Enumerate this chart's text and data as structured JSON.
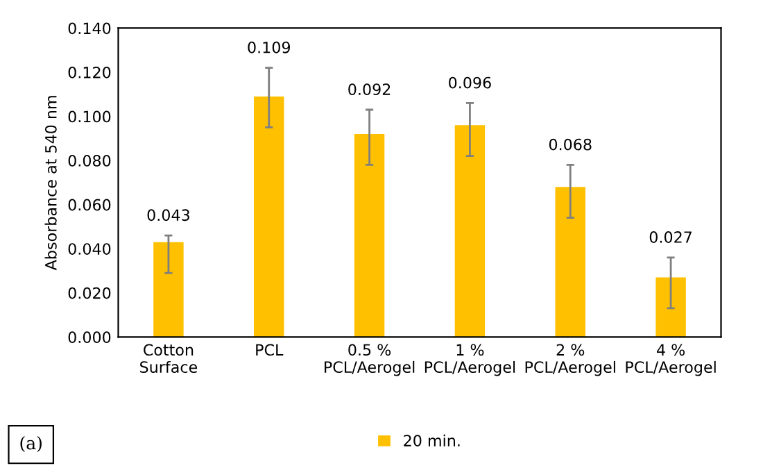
{
  "chart_data": {
    "type": "bar",
    "ylabel": "Absorbance at 540 nm",
    "categories": [
      "Cotton\nSurface",
      "PCL",
      "0.5 %\nPCL/Aerogel",
      "1 %\nPCL/Aerogel",
      "2 %\nPCL/Aerogel",
      "4 %\nPCL/Aerogel"
    ],
    "series": [
      {
        "name": "20 min.",
        "color": "#ffc000",
        "values": [
          0.043,
          0.109,
          0.092,
          0.096,
          0.068,
          0.027
        ],
        "errors": [
          [
            0.029,
            0.046
          ],
          [
            0.095,
            0.122
          ],
          [
            0.078,
            0.103
          ],
          [
            0.082,
            0.106
          ],
          [
            0.054,
            0.078
          ],
          [
            0.013,
            0.036
          ]
        ],
        "value_labels": [
          "0.043",
          "0.109",
          "0.092",
          "0.096",
          "0.068",
          "0.027"
        ]
      }
    ],
    "ylim": [
      0,
      0.14
    ],
    "yticks": [
      {
        "value": 0,
        "label": "0.000"
      },
      {
        "value": 0.02,
        "label": "0.020"
      },
      {
        "value": 0.04,
        "label": "0.040"
      },
      {
        "value": 0.06,
        "label": "0.060"
      },
      {
        "value": 0.08,
        "label": "0.080"
      },
      {
        "value": 0.1,
        "label": "0.100"
      },
      {
        "value": 0.12,
        "label": "0.120"
      },
      {
        "value": 0.14,
        "label": "0.140"
      }
    ],
    "annotations": [
      "(a)"
    ],
    "legend": "bottom",
    "grid": false
  }
}
